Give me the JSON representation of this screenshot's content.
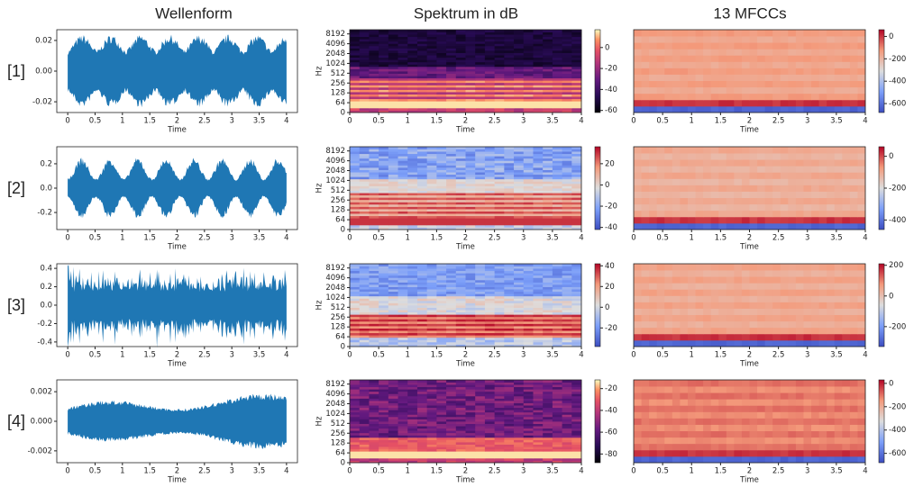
{
  "columns": [
    "Wellenform",
    "Spektrum in dB",
    "13 MFCCs"
  ],
  "time": {
    "label": "Time",
    "lim": [
      0,
      4
    ],
    "ticks": [
      0,
      0.5,
      1,
      1.5,
      2,
      2.5,
      3,
      3.5,
      4
    ]
  },
  "hz": {
    "label": "Hz",
    "lim": [
      0,
      11025
    ],
    "yscale": "log",
    "ticks": [
      0,
      64,
      128,
      256,
      512,
      1024,
      2048,
      4096,
      8192
    ]
  },
  "rows": [
    {
      "label": "[1]",
      "waveform": {
        "color": "#1f77b4",
        "xlim": [
          -0.2,
          4.2
        ],
        "ylim": [
          -0.027,
          0.027
        ],
        "yticks": [
          0.02,
          {
            "value": 0,
            "label": "0.00"
          },
          -0.02
        ]
      },
      "spectrum": {
        "colormap": "magma",
        "clim": [
          -62,
          17
        ],
        "cticks": [
          0,
          -20,
          -40,
          -60
        ]
      },
      "mfcc": {
        "colormap": "coolwarm",
        "clim": [
          -680,
          60
        ],
        "cticks": [
          0,
          -200,
          -400,
          -600
        ]
      }
    },
    {
      "label": "[2]",
      "waveform": {
        "color": "#1f77b4",
        "xlim": [
          -0.2,
          4.2
        ],
        "ylim": [
          -0.34,
          0.34
        ],
        "yticks": [
          0.2,
          {
            "value": 0,
            "label": "0.0"
          },
          -0.2
        ]
      },
      "spectrum": {
        "colormap": "coolwarm",
        "clim": [
          -42,
          36
        ],
        "cticks": [
          20,
          0,
          -20,
          -40
        ]
      },
      "mfcc": {
        "colormap": "coolwarm",
        "clim": [
          -460,
          60
        ],
        "cticks": [
          0,
          -200,
          -400
        ]
      }
    },
    {
      "label": "[3]",
      "waveform": {
        "color": "#1f77b4",
        "xlim": [
          -0.2,
          4.2
        ],
        "ylim": [
          -0.45,
          0.45
        ],
        "yticks": [
          0.4,
          0.2,
          {
            "value": 0,
            "label": "0.0"
          },
          -0.2,
          -0.4
        ]
      },
      "spectrum": {
        "colormap": "coolwarm",
        "clim": [
          -38,
          42
        ],
        "cticks": [
          40,
          20,
          0,
          -20
        ]
      },
      "mfcc": {
        "colormap": "coolwarm",
        "clim": [
          -330,
          210
        ],
        "cticks": [
          200,
          0,
          -200
        ]
      }
    },
    {
      "label": "[4]",
      "waveform": {
        "color": "#1f77b4",
        "xlim": [
          -0.2,
          4.2
        ],
        "ylim": [
          -0.0028,
          0.0028
        ],
        "yticks": [
          0.002,
          {
            "value": 0,
            "label": "0.000"
          },
          -0.002
        ]
      },
      "spectrum": {
        "colormap": "magma",
        "clim": [
          -88,
          -12
        ],
        "cticks": [
          -20,
          -40,
          -60,
          -80
        ]
      },
      "mfcc": {
        "colormap": "coolwarm",
        "clim": [
          -680,
          30
        ],
        "cticks": [
          0,
          -200,
          -400,
          -600
        ]
      }
    }
  ]
}
